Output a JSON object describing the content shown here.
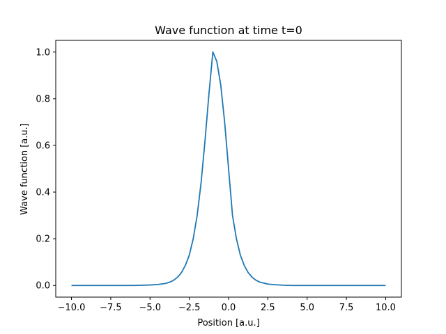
{
  "chart_data": {
    "type": "line",
    "title": "Wave function at time t=0",
    "xlabel": "Position [a.u.]",
    "ylabel": "Wave function [a.u.]",
    "xlim": [
      -11,
      11
    ],
    "ylim": [
      -0.05,
      1.05
    ],
    "xticks": [
      -10.0,
      -7.5,
      -5.0,
      -2.5,
      0.0,
      2.5,
      5.0,
      7.5,
      10.0
    ],
    "xtick_labels": [
      "−10.0",
      "−7.5",
      "−5.0",
      "−2.5",
      "0.0",
      "2.5",
      "5.0",
      "7.5",
      "10.0"
    ],
    "yticks": [
      0.0,
      0.2,
      0.4,
      0.6,
      0.8,
      1.0
    ],
    "ytick_labels": [
      "0.0",
      "0.2",
      "0.4",
      "0.6",
      "0.8",
      "1.0"
    ],
    "grid": false,
    "series": [
      {
        "color": "#1f77b4",
        "x": [
          -10.0,
          -9.0,
          -8.0,
          -7.0,
          -6.0,
          -5.0,
          -4.5,
          -4.0,
          -3.75,
          -3.5,
          -3.25,
          -3.0,
          -2.75,
          -2.5,
          -2.25,
          -2.0,
          -1.75,
          -1.5,
          -1.25,
          -1.0,
          -0.75,
          -0.5,
          -0.25,
          0.0,
          0.25,
          0.5,
          0.75,
          1.0,
          1.25,
          1.5,
          1.75,
          2.0,
          2.5,
          3.0,
          3.5,
          4.0,
          5.0,
          6.0,
          7.0,
          8.0,
          9.0,
          10.0
        ],
        "y": [
          0.0,
          0.0,
          0.0,
          0.0,
          0.0,
          0.002,
          0.004,
          0.009,
          0.014,
          0.022,
          0.035,
          0.055,
          0.086,
          0.13,
          0.2,
          0.3,
          0.44,
          0.62,
          0.82,
          1.0,
          0.96,
          0.86,
          0.7,
          0.5,
          0.3,
          0.2,
          0.13,
          0.085,
          0.055,
          0.035,
          0.022,
          0.014,
          0.006,
          0.003,
          0.001,
          0.0,
          0.0,
          0.0,
          0.0,
          0.0,
          0.0,
          0.0
        ]
      }
    ]
  }
}
